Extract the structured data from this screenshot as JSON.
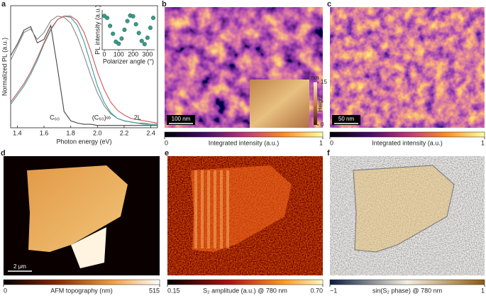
{
  "chart_data": [
    {
      "type": "line",
      "panel_label": "a",
      "xlabel": "Photon energy (eV)",
      "ylabel": "Normalized PL (a.u.)",
      "xlim": [
        1.35,
        2.45
      ],
      "ylim": [
        0,
        1.05
      ],
      "xticks": [
        1.4,
        1.6,
        1.8,
        {
          "value": 2,
          "label": "2.0"
        },
        2.2,
        2.4
      ],
      "x": [
        1.35,
        1.4,
        1.45,
        1.5,
        1.55,
        1.6,
        1.65,
        1.7,
        1.75,
        1.8,
        1.85,
        1.9,
        1.95,
        2.0,
        2.05,
        2.1,
        2.15,
        2.2,
        2.25,
        2.3,
        2.35,
        2.4,
        2.45
      ],
      "series": [
        {
          "color": "#444",
          "values": [
            0.62,
            0.72,
            0.84,
            0.87,
            0.73,
            0.76,
            0.88,
            0.52,
            0.14,
            0.06,
            0.04,
            0.03,
            0.03,
            0.02,
            0.02,
            0.02,
            0.02,
            0.02,
            0.02,
            0.02,
            0.02,
            0.02,
            0.02
          ]
        },
        {
          "color": "#888",
          "values": [
            0.58,
            0.7,
            0.82,
            0.85,
            0.76,
            0.82,
            0.92,
            0.96,
            0.95,
            0.9,
            0.78,
            0.62,
            0.45,
            0.3,
            0.19,
            0.12,
            0.08,
            0.06,
            0.05,
            0.04,
            0.04,
            0.03,
            0.03
          ]
        },
        {
          "color": "#3a9a9a",
          "values": [
            0.2,
            0.28,
            0.36,
            0.46,
            0.58,
            0.72,
            0.84,
            0.93,
            0.96,
            0.95,
            0.88,
            0.74,
            0.55,
            0.36,
            0.22,
            0.13,
            0.08,
            0.06,
            0.05,
            0.04,
            0.03,
            0.03,
            0.03
          ]
        },
        {
          "color": "#d05555",
          "values": [
            0.22,
            0.3,
            0.38,
            0.48,
            0.6,
            0.73,
            0.85,
            0.93,
            0.96,
            0.96,
            0.92,
            0.82,
            0.66,
            0.48,
            0.33,
            0.22,
            0.15,
            0.11,
            0.08,
            0.07,
            0.06,
            0.05,
            0.04
          ]
        }
      ],
      "annotations": [
        "C₆₀",
        "(C₆₀)∞",
        "2L"
      ]
    },
    {
      "type": "scatter",
      "xlabel": "Polarizer angle (°)",
      "ylabel": "PL intensity (a.u.)",
      "color": "#3a9a8a",
      "xlim": [
        -15,
        350
      ],
      "ylim": [
        0,
        1
      ],
      "xticks": [
        0,
        100,
        200,
        300
      ],
      "x": [
        0,
        20,
        40,
        60,
        80,
        100,
        120,
        140,
        160,
        180,
        200,
        220,
        240,
        260,
        280,
        300,
        320,
        340
      ],
      "values": [
        0.85,
        0.8,
        0.6,
        0.4,
        0.2,
        0.15,
        0.28,
        0.5,
        0.72,
        0.86,
        0.84,
        0.64,
        0.42,
        0.22,
        0.14,
        0.3,
        0.55,
        0.8
      ]
    }
  ],
  "images": [
    {
      "letter": "b",
      "scalebar": "100 nm",
      "colorbar_label": "Integrated intensity (a.u.)",
      "colorbar_ticks": [
        0,
        1
      ],
      "inset": {
        "unit": "nm",
        "label": "Height",
        "ticks": [
          0,
          15
        ]
      }
    },
    {
      "letter": "c",
      "scalebar": "50 nm",
      "colorbar_label": "Integrated intensity (a.u.)",
      "colorbar_ticks": [
        0,
        1
      ]
    },
    {
      "letter": "d",
      "scalebar": "2 μm",
      "colorbar_label": "AFM topography (nm)",
      "colorbar_ticks": [
        0,
        515
      ]
    },
    {
      "letter": "e",
      "colorbar_label": "S₂ amplitude (a.u.) @ 780 nm",
      "colorbar_ticks": [
        0.15,
        {
          "value": 0.7,
          "label": "0.70"
        }
      ]
    },
    {
      "letter": "f",
      "colorbar_label": "sin(S₂ phase) @ 780 nm",
      "colorbar_ticks": [
        {
          "value": -1,
          "label": "−1"
        },
        1
      ]
    }
  ]
}
